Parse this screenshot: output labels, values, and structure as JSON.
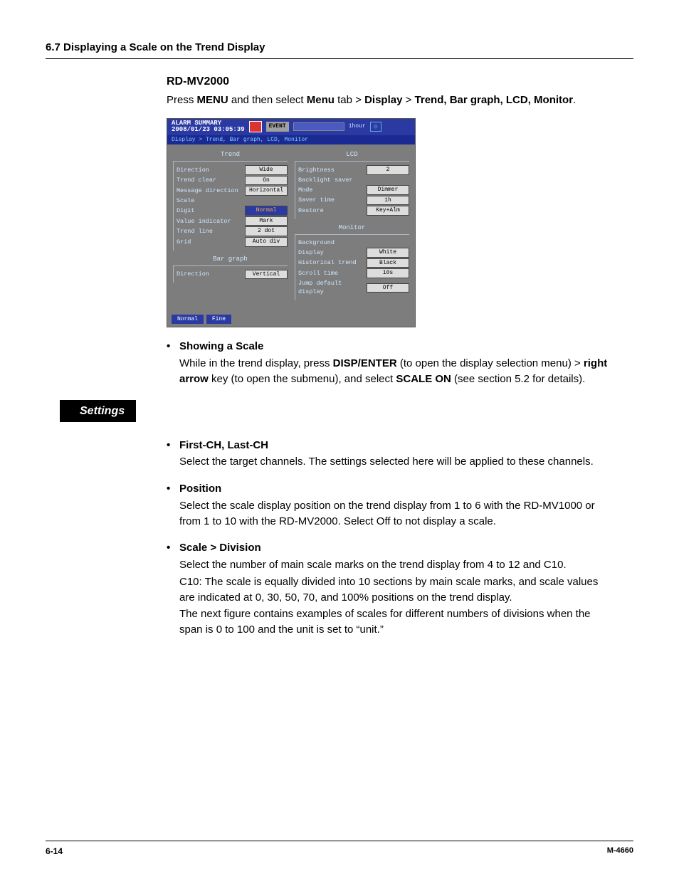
{
  "header": {
    "section": "6.7  Displaying a Scale on the Trend Display"
  },
  "intro": {
    "device": "RD-MV2000",
    "line": {
      "pre": "Press ",
      "b1": "MENU",
      "mid1": " and then select ",
      "b2": "Menu",
      "mid2": " tab > ",
      "b3": "Display",
      "mid3": " > ",
      "b4": "Trend, Bar graph, LCD, Monitor",
      "post": "."
    }
  },
  "device_screen": {
    "top": {
      "alarm_l1": "ALARM SUMMARY",
      "alarm_l2": "2008/01/23 03:05:39",
      "event": "EVENT",
      "time": "1hour",
      "box": "◎"
    },
    "crumb": "Display > Trend, Bar graph, LCD, Monitor",
    "left": {
      "g1_title": "Trend",
      "rows1": [
        {
          "l": "Direction",
          "v": "Wide"
        },
        {
          "l": "Trend clear",
          "v": "On"
        },
        {
          "l": "Message direction",
          "v": "Horizontal"
        },
        {
          "l": "Scale",
          "v": ""
        },
        {
          "l": "Digit",
          "v": "Normal",
          "hl": true
        },
        {
          "l": "Value indicator",
          "v": "Mark"
        },
        {
          "l": "Trend line",
          "v": "2   dot"
        },
        {
          "l": "Grid",
          "v": "Auto  div"
        }
      ],
      "g2_title": "Bar graph",
      "rows2": [
        {
          "l": "Direction",
          "v": "Vertical"
        }
      ]
    },
    "right": {
      "g1_title": "LCD",
      "rows1": [
        {
          "l": "Brightness",
          "v": "2"
        },
        {
          "l": "Backlight saver",
          "v": ""
        },
        {
          "l": "Mode",
          "v": "Dimmer"
        },
        {
          "l": "Saver time",
          "v": "1h"
        },
        {
          "l": "Restore",
          "v": "Key+Alm"
        }
      ],
      "g2_title": "Monitor",
      "rows2": [
        {
          "l": "Background",
          "v": ""
        },
        {
          "l": "Display",
          "v": "White"
        },
        {
          "l": "Historical trend",
          "v": "Black"
        },
        {
          "l": "Scroll time",
          "v": "10s"
        },
        {
          "l": "Jump default display",
          "v": "Off"
        }
      ]
    },
    "bottom": {
      "b1": "Normal",
      "b2": "Fine"
    }
  },
  "showing_scale": {
    "title": "Showing a Scale",
    "p": {
      "t1": "While in the trend display, press ",
      "b1": "DISP/ENTER",
      "t2": " (to open the display selection menu) > ",
      "b2": "right arrow",
      "t3": " key (to open the submenu), and select ",
      "b3": "SCALE ON",
      "t4": " (see section 5.2 for details)."
    }
  },
  "settings_label": "Settings",
  "settings": [
    {
      "title": "First-CH, Last-CH",
      "body": "Select the target channels. The settings selected here will be applied to these channels."
    },
    {
      "title": "Position",
      "body": "Select the scale display position on the trend display from 1 to 6 with the RD-MV1000 or from 1 to 10 with the RD-MV2000. Select Off to not display a scale."
    },
    {
      "title": "Scale > Division",
      "body": "Select the number of main scale marks on the trend display from 4 to 12 and C10.",
      "note": "C10: The scale is equally divided into 10 sections by main scale marks, and scale values are indicated at 0, 30, 50, 70, and 100% positions on the trend display.",
      "body2": "The next figure contains examples of scales for different numbers of divisions when the span is 0 to 100 and the unit is set to “unit.”"
    }
  ],
  "footer": {
    "page": "6-14",
    "doc": "M-4660"
  }
}
